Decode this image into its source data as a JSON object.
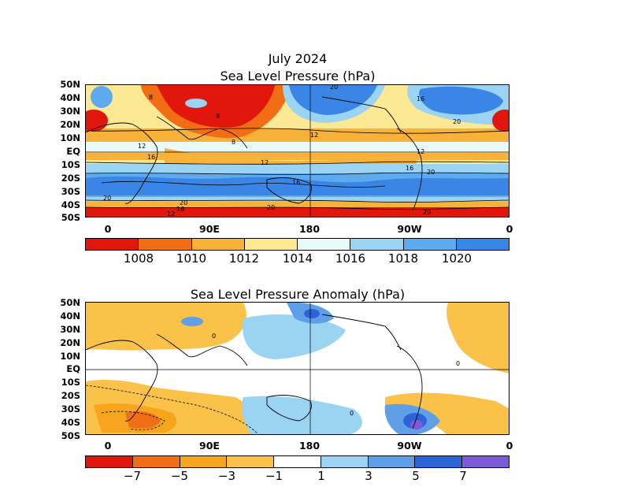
{
  "panel1": {
    "title_line1": "July 2024",
    "title_line2": "Sea Level Pressure (hPa)",
    "contour_labels": [
      "8",
      "8",
      "8",
      "20",
      "16",
      "20",
      "12",
      "16",
      "12",
      "12",
      "16",
      "16",
      "20",
      "20",
      "20",
      "20",
      "12",
      "16",
      "20",
      "12"
    ],
    "colorbar": {
      "colors": [
        "#e1170e",
        "#f26e14",
        "#f8b23a",
        "#fde994",
        "#e9fbf9",
        "#9bd3f3",
        "#5eaaee",
        "#3a86e6"
      ],
      "labels": [
        "1008",
        "1010",
        "1012",
        "1014",
        "1016",
        "1018",
        "1020"
      ]
    }
  },
  "panel2": {
    "title": "Sea Level Pressure Anomaly (hPa)",
    "contour_labels": [
      "0",
      "0",
      "0"
    ],
    "colorbar": {
      "colors": [
        "#e1170e",
        "#f26e14",
        "#f6a51d",
        "#fbc24a",
        "#ffffff",
        "#9bd3f3",
        "#5e9fe8",
        "#2c64d8",
        "#7d5ad8"
      ],
      "labels": [
        "−7",
        "−5",
        "−3",
        "−1",
        "1",
        "3",
        "5",
        "7"
      ]
    }
  },
  "axes": {
    "lat_labels": [
      "50N",
      "40N",
      "30N",
      "20N",
      "10N",
      "EQ",
      "10S",
      "20S",
      "30S",
      "40S",
      "50S"
    ],
    "lon_labels": [
      "0",
      "90E",
      "180",
      "90W",
      "0"
    ]
  }
}
